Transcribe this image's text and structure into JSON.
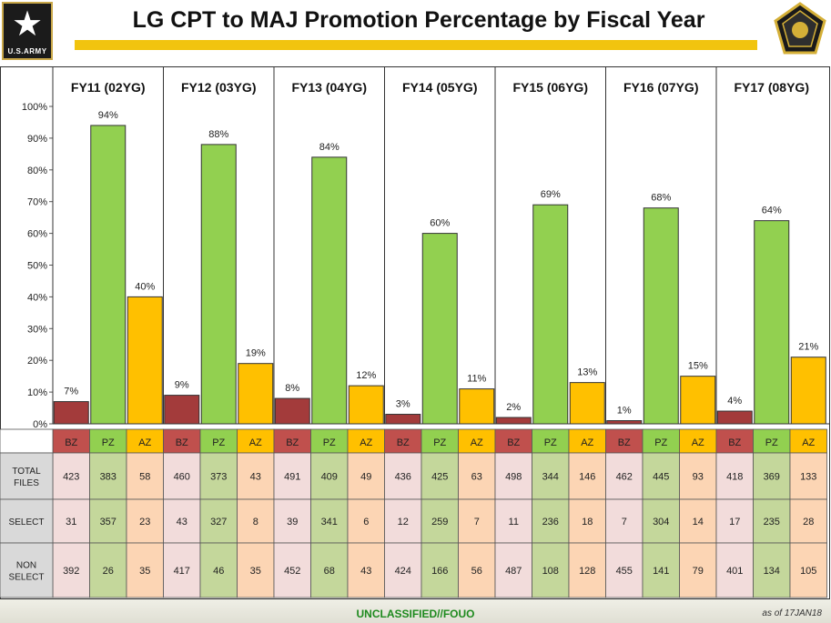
{
  "header": {
    "title": "LG CPT to MAJ Promotion Percentage by Fiscal Year",
    "logo_text": "U.S.ARMY"
  },
  "footer": {
    "classification": "UNCLASSIFIED//FOUO",
    "date": "as of 17JAN18"
  },
  "chart_data": {
    "type": "bar",
    "title": "LG CPT to MAJ Promotion Percentage by Fiscal Year",
    "ylim": [
      0,
      100
    ],
    "yticks": [
      "0%",
      "10%",
      "20%",
      "30%",
      "40%",
      "50%",
      "60%",
      "70%",
      "80%",
      "90%",
      "100%"
    ],
    "zone_labels": [
      "BZ",
      "PZ",
      "AZ"
    ],
    "groups": [
      {
        "label": "FY11 (02YG)",
        "values": [
          7,
          94,
          40
        ],
        "labels": [
          "7%",
          "94%",
          "40%"
        ],
        "total_files": [
          423,
          383,
          58
        ],
        "select": [
          31,
          357,
          23
        ],
        "non_select": [
          392,
          26,
          35
        ]
      },
      {
        "label": "FY12 (03YG)",
        "values": [
          9,
          88,
          19
        ],
        "labels": [
          "9%",
          "88%",
          "19%"
        ],
        "total_files": [
          460,
          373,
          43
        ],
        "select": [
          43,
          327,
          8
        ],
        "non_select": [
          417,
          46,
          35
        ]
      },
      {
        "label": "FY13 (04YG)",
        "values": [
          8,
          84,
          12
        ],
        "labels": [
          "8%",
          "84%",
          "12%"
        ],
        "total_files": [
          491,
          409,
          49
        ],
        "select": [
          39,
          341,
          6
        ],
        "non_select": [
          452,
          68,
          43
        ]
      },
      {
        "label": "FY14 (05YG)",
        "values": [
          3,
          60,
          11
        ],
        "labels": [
          "3%",
          "60%",
          "11%"
        ],
        "total_files": [
          436,
          425,
          63
        ],
        "select": [
          12,
          259,
          7
        ],
        "non_select": [
          424,
          166,
          56
        ]
      },
      {
        "label": "FY15 (06YG)",
        "values": [
          2,
          69,
          13
        ],
        "labels": [
          "2%",
          "69%",
          "13%"
        ],
        "total_files": [
          498,
          344,
          146
        ],
        "select": [
          11,
          236,
          18
        ],
        "non_select": [
          487,
          108,
          128
        ]
      },
      {
        "label": "FY16 (07YG)",
        "values": [
          1,
          68,
          15
        ],
        "labels": [
          "1%",
          "68%",
          "15%"
        ],
        "total_files": [
          462,
          445,
          93
        ],
        "select": [
          7,
          304,
          14
        ],
        "non_select": [
          455,
          141,
          79
        ]
      },
      {
        "label": "FY17 (08YG)",
        "values": [
          4,
          64,
          21
        ],
        "labels": [
          "4%",
          "64%",
          "21%"
        ],
        "total_files": [
          418,
          369,
          133
        ],
        "select": [
          17,
          235,
          28
        ],
        "non_select": [
          401,
          134,
          105
        ]
      }
    ],
    "row_labels": [
      [
        "TOTAL",
        "FILES"
      ],
      [
        "SELECT"
      ],
      [
        "NON",
        "SELECT"
      ]
    ],
    "colors": {
      "bz": "#a33b3b",
      "pz": "#92d050",
      "az": "#ffc000",
      "bz_cell": "#f2dcdb",
      "pz_cell": "#c4d79b",
      "az_cell": "#fcd5b4",
      "label_cell": "#d9d9d9",
      "zone_bz": "#c0504d",
      "zone_pz": "#92d050",
      "zone_az": "#ffc000"
    }
  }
}
